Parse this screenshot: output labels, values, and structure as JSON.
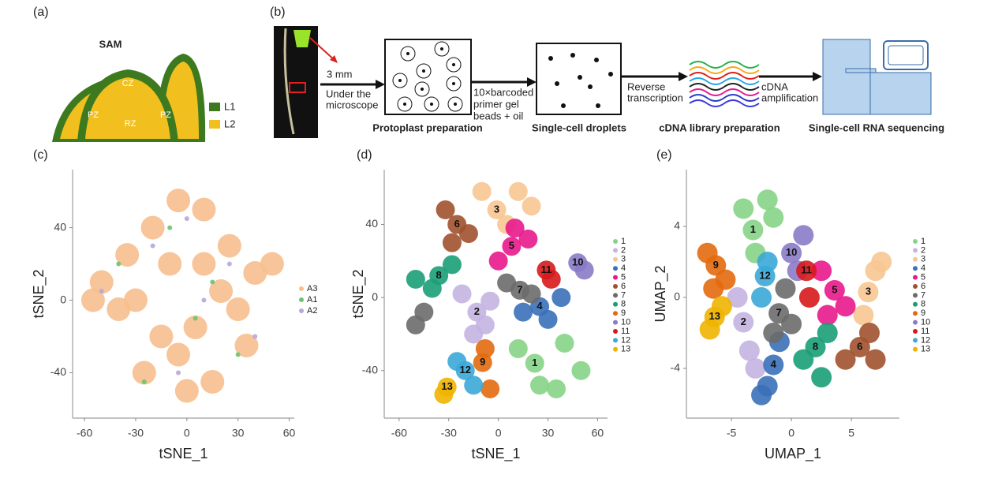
{
  "panel_labels": [
    "(a)",
    "(b)",
    "(c)",
    "(d)",
    "(e)"
  ],
  "diagram_a": {
    "title": "SAM",
    "zones": [
      "CZ",
      "PZ",
      "RZ",
      "PZ"
    ],
    "legend": [
      "L1",
      "L2"
    ]
  },
  "diagram_b": {
    "scale": "3 mm",
    "step1": [
      "Under the",
      "microscope"
    ],
    "box1": "Protoplast preparation",
    "step2": [
      "10×barcoded",
      "primer gel",
      "beads + oil"
    ],
    "box2": "Single-cell droplets",
    "step3": [
      "Reverse",
      "transcription"
    ],
    "box3": "cDNA library preparation",
    "step4": [
      "cDNA",
      "amplification"
    ],
    "box4": "Single-cell RNA sequencing"
  },
  "chart_data": [
    {
      "type": "scatter",
      "xlabel": "tSNE_1",
      "ylabel": "tSNE_2",
      "xlim": [
        -67,
        63
      ],
      "ylim": [
        -65,
        72
      ],
      "xticks": [
        -60,
        -30,
        0,
        30,
        60
      ],
      "yticks": [
        -40,
        0,
        40
      ],
      "series": [
        {
          "name": "A3",
          "color": "#f6bf8e",
          "x": [
            -50,
            -35,
            -20,
            -5,
            10,
            25,
            40,
            -40,
            -10,
            20,
            35,
            -25,
            0,
            15,
            -55,
            5,
            50,
            -15,
            -30,
            30,
            -5,
            10
          ],
          "y": [
            10,
            25,
            40,
            55,
            50,
            30,
            15,
            -5,
            20,
            5,
            -25,
            -40,
            -50,
            -45,
            0,
            -15,
            20,
            -20,
            0,
            -5,
            -30,
            20
          ]
        },
        {
          "name": "A1",
          "color": "#6cc46c",
          "x": [
            -40,
            -10,
            15,
            30,
            -25,
            5
          ],
          "y": [
            20,
            40,
            10,
            -30,
            -45,
            -10
          ]
        },
        {
          "name": "A2",
          "color": "#b8a6dc",
          "x": [
            -50,
            -20,
            0,
            25,
            40,
            -5,
            10
          ],
          "y": [
            5,
            30,
            45,
            20,
            -20,
            -40,
            0
          ]
        }
      ]
    },
    {
      "type": "scatter",
      "xlabel": "tSNE_1",
      "ylabel": "tSNE_2",
      "xlim": [
        -69,
        66
      ],
      "ylim": [
        -66,
        70
      ],
      "xticks": [
        -60,
        -30,
        0,
        30,
        60
      ],
      "yticks": [
        -40,
        0,
        40
      ],
      "series": [
        {
          "name": "1",
          "color": "#86d486",
          "x": [
            22,
            12,
            40,
            50,
            25,
            35
          ],
          "y": [
            -36,
            -28,
            -25,
            -40,
            -48,
            -50
          ]
        },
        {
          "name": "2",
          "color": "#c4b4e2",
          "x": [
            -13,
            -22,
            -5,
            -15,
            -8
          ],
          "y": [
            -8,
            2,
            -2,
            -20,
            -15
          ]
        },
        {
          "name": "3",
          "color": "#f7c792",
          "x": [
            -1,
            -10,
            12,
            20,
            5
          ],
          "y": [
            48,
            58,
            58,
            50,
            40
          ]
        },
        {
          "name": "4",
          "color": "#3a70b8",
          "x": [
            25,
            15,
            38,
            30
          ],
          "y": [
            -5,
            -8,
            0,
            -12
          ]
        },
        {
          "name": "5",
          "color": "#e8198c",
          "x": [
            8,
            0,
            18,
            10
          ],
          "y": [
            28,
            20,
            32,
            38
          ]
        },
        {
          "name": "6",
          "color": "#a0522d",
          "x": [
            -25,
            -32,
            -18,
            -28
          ],
          "y": [
            40,
            48,
            35,
            30
          ]
        },
        {
          "name": "7",
          "color": "#6b6b6b",
          "x": [
            13,
            5,
            20,
            -45,
            -50
          ],
          "y": [
            4,
            8,
            2,
            -8,
            -15
          ]
        },
        {
          "name": "8",
          "color": "#1a9e77",
          "x": [
            -36,
            -50,
            -28,
            -40
          ],
          "y": [
            12,
            10,
            18,
            5
          ]
        },
        {
          "name": "9",
          "color": "#e36a0e",
          "x": [
            -9.5,
            -8,
            -5
          ],
          "y": [
            -35.6,
            -28,
            -50
          ]
        },
        {
          "name": "10",
          "color": "#8b7bc8",
          "x": [
            48,
            52
          ],
          "y": [
            19,
            15
          ]
        },
        {
          "name": "11",
          "color": "#d7191c",
          "x": [
            29,
            32
          ],
          "y": [
            15,
            10
          ]
        },
        {
          "name": "12",
          "color": "#3aa8d8",
          "x": [
            -20,
            -25,
            -15
          ],
          "y": [
            -40,
            -35,
            -48
          ]
        },
        {
          "name": "13",
          "color": "#f0b400",
          "x": [
            -31,
            -33
          ],
          "y": [
            -49,
            -53
          ]
        }
      ]
    },
    {
      "type": "scatter",
      "xlabel": "UMAP_1",
      "ylabel": "UMAP_2",
      "xlim": [
        -8.75,
        9
      ],
      "ylim": [
        -6.8,
        7.2
      ],
      "xticks": [
        -5,
        0,
        5
      ],
      "yticks": [
        -4,
        0,
        4
      ],
      "series": [
        {
          "name": "1",
          "color": "#86d486",
          "x": [
            -3.2,
            -4,
            -2,
            -3,
            -1.5
          ],
          "y": [
            3.8,
            5,
            5.5,
            2.5,
            4.5
          ]
        },
        {
          "name": "2",
          "color": "#c4b4e2",
          "x": [
            -4,
            -4.5,
            -3.5,
            -3
          ],
          "y": [
            -1.4,
            0,
            -3,
            -4
          ]
        },
        {
          "name": "3",
          "color": "#f7c792",
          "x": [
            6.4,
            7,
            6,
            7.5
          ],
          "y": [
            0.3,
            1.5,
            -1,
            2
          ]
        },
        {
          "name": "4",
          "color": "#3a70b8",
          "x": [
            -1.5,
            -2,
            -1,
            -2.5
          ],
          "y": [
            -3.8,
            -5,
            -2.5,
            -5.5
          ]
        },
        {
          "name": "5",
          "color": "#e8198c",
          "x": [
            3.6,
            2.5,
            4.5,
            3
          ],
          "y": [
            0.4,
            1.5,
            -0.5,
            -1
          ]
        },
        {
          "name": "6",
          "color": "#a0522d",
          "x": [
            5.7,
            6.5,
            4.5,
            7
          ],
          "y": [
            -2.8,
            -2,
            -3.5,
            -3.5
          ]
        },
        {
          "name": "7",
          "color": "#6b6b6b",
          "x": [
            -1.05,
            -0.5,
            -1.5,
            0
          ],
          "y": [
            -0.9,
            0.5,
            -2,
            -1.5
          ]
        },
        {
          "name": "8",
          "color": "#1a9e77",
          "x": [
            2,
            1,
            3,
            2.5
          ],
          "y": [
            -2.8,
            -3.5,
            -2,
            -4.5
          ]
        },
        {
          "name": "9",
          "color": "#e36a0e",
          "x": [
            -6.3,
            -7,
            -5.5,
            -6.5
          ],
          "y": [
            1.8,
            2.5,
            1,
            0.5
          ]
        },
        {
          "name": "10",
          "color": "#8b7bc8",
          "x": [
            0,
            1,
            0.5
          ],
          "y": [
            2.5,
            3.5,
            1.5
          ]
        },
        {
          "name": "11",
          "color": "#d7191c",
          "x": [
            1.25,
            1.5
          ],
          "y": [
            1.5,
            0
          ]
        },
        {
          "name": "12",
          "color": "#3aa8d8",
          "x": [
            -2.2,
            -2.5,
            -2
          ],
          "y": [
            1.2,
            0,
            2
          ]
        },
        {
          "name": "13",
          "color": "#f0b400",
          "x": [
            -6.4,
            -6.8,
            -5.8
          ],
          "y": [
            -1.1,
            -1.8,
            -0.5
          ]
        }
      ]
    }
  ]
}
